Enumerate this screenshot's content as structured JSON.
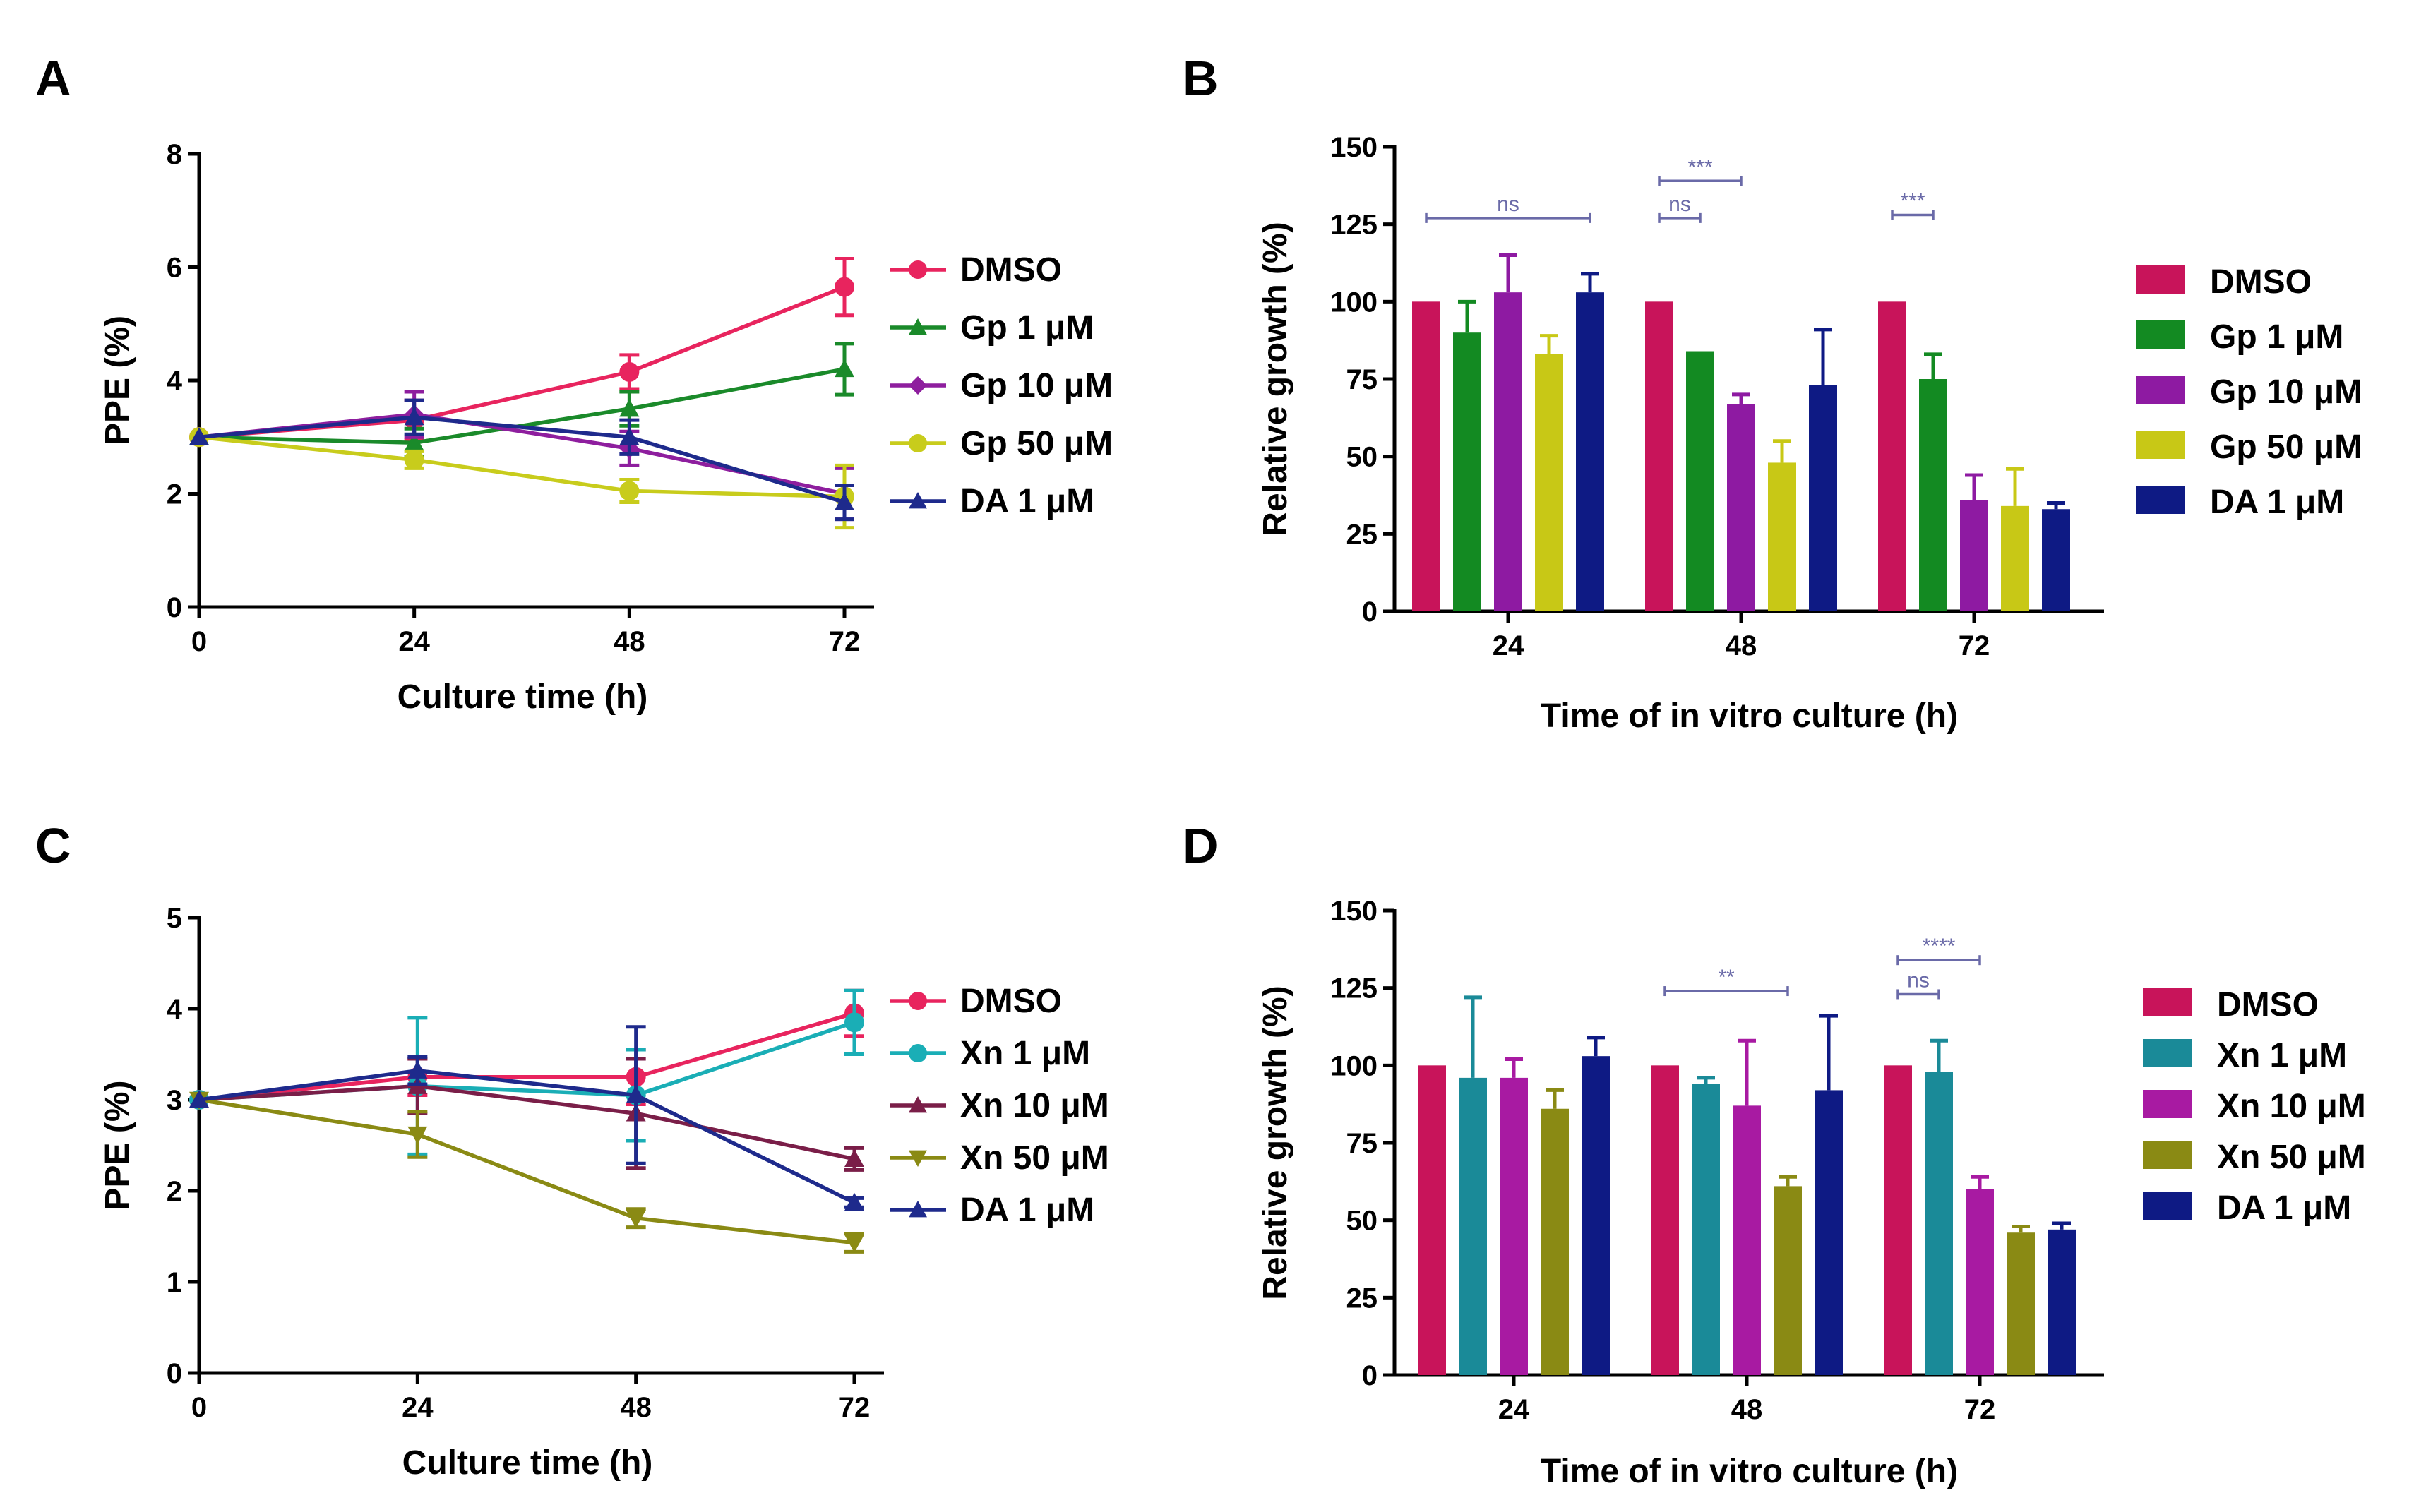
{
  "chart_data": [
    {
      "panel": "A",
      "type": "line",
      "x": [
        0,
        24,
        48,
        72
      ],
      "xlabel": "Culture time (h)",
      "ylabel": "PPE (%)",
      "ylim": [
        0,
        8
      ],
      "yticks": [
        0,
        2,
        4,
        6,
        8
      ],
      "xticks": [
        0,
        24,
        48,
        72
      ],
      "series": [
        {
          "name": "DMSO",
          "color": "#e8245e",
          "marker": "circle",
          "values": [
            3.0,
            3.3,
            4.15,
            5.65
          ],
          "errors": [
            0,
            0.35,
            0.3,
            0.5
          ]
        },
        {
          "name": "Gp 1 μM",
          "color": "#1a8a2a",
          "marker": "triangle-up",
          "values": [
            3.0,
            2.9,
            3.5,
            4.2
          ],
          "errors": [
            0,
            0.25,
            0.3,
            0.45
          ]
        },
        {
          "name": "Gp 10 μM",
          "color": "#8e1e9e",
          "marker": "diamond",
          "values": [
            3.0,
            3.4,
            2.8,
            2.0
          ],
          "errors": [
            0,
            0.4,
            0.3,
            0.45
          ]
        },
        {
          "name": "Gp 50 μM",
          "color": "#c8cc1c",
          "marker": "circle",
          "values": [
            3.0,
            2.6,
            2.05,
            1.95
          ],
          "errors": [
            0,
            0.15,
            0.2,
            0.55
          ]
        },
        {
          "name": "DA 1 μM",
          "color": "#1e2a8c",
          "marker": "triangle-up",
          "values": [
            3.0,
            3.35,
            3.0,
            1.85
          ],
          "errors": [
            0,
            0.3,
            0.3,
            0.3
          ]
        }
      ]
    },
    {
      "panel": "B",
      "type": "bar",
      "categories": [
        "24",
        "48",
        "72"
      ],
      "xlabel": "Time of in vitro culture (h)",
      "ylabel": "Relative growth (%)",
      "ylim": [
        0,
        150
      ],
      "yticks": [
        0,
        25,
        50,
        75,
        100,
        125,
        150
      ],
      "series": [
        {
          "name": "DMSO",
          "color": "#c8145a",
          "values": [
            100,
            100,
            100
          ],
          "errors": [
            0,
            0,
            0
          ]
        },
        {
          "name": "Gp 1 μM",
          "color": "#138a22",
          "values": [
            90,
            84,
            75
          ],
          "errors": [
            10,
            0,
            8
          ]
        },
        {
          "name": "Gp 10 μM",
          "color": "#8e1aa2",
          "values": [
            103,
            67,
            36
          ],
          "errors": [
            12,
            3,
            8
          ]
        },
        {
          "name": "Gp 50 μM",
          "color": "#c8c816",
          "values": [
            83,
            48,
            34
          ],
          "errors": [
            6,
            7,
            12
          ]
        },
        {
          "name": "DA 1 μM",
          "color": "#0e1a84",
          "values": [
            103,
            73,
            33
          ],
          "errors": [
            6,
            18,
            2
          ]
        }
      ],
      "annotations": [
        {
          "text": "ns",
          "group": "24",
          "from_series": 0,
          "to_series": 4,
          "y": 127
        },
        {
          "text": "***",
          "group": "48",
          "from_series": 0,
          "to_series": 2,
          "y": 139
        },
        {
          "text": "ns",
          "group": "48",
          "from_series": 0,
          "to_series": 1,
          "y": 127
        },
        {
          "text": "***",
          "group": "72",
          "from_series": 0,
          "to_series": 1,
          "y": 128
        }
      ]
    },
    {
      "panel": "C",
      "type": "line",
      "x": [
        0,
        24,
        48,
        72
      ],
      "xlabel": "Culture time (h)",
      "ylabel": "PPE (%)",
      "ylim": [
        0,
        5
      ],
      "yticks": [
        0,
        1,
        2,
        3,
        4,
        5
      ],
      "xticks": [
        0,
        24,
        48,
        72
      ],
      "series": [
        {
          "name": "DMSO",
          "color": "#e8245e",
          "marker": "circle",
          "values": [
            3.0,
            3.25,
            3.25,
            3.95
          ],
          "errors": [
            0,
            0.2,
            0.3,
            0.25
          ]
        },
        {
          "name": "Xn 1 μM",
          "color": "#1aaeb6",
          "marker": "circle",
          "values": [
            3.0,
            3.15,
            3.05,
            3.85
          ],
          "errors": [
            0,
            0.75,
            0.5,
            0.35
          ]
        },
        {
          "name": "Xn 10 μM",
          "color": "#7a1e48",
          "marker": "triangle-up",
          "values": [
            3.0,
            3.15,
            2.85,
            2.35
          ],
          "errors": [
            0,
            0.3,
            0.6,
            0.12
          ]
        },
        {
          "name": "Xn 50 μM",
          "color": "#8a8a14",
          "marker": "triangle-down",
          "values": [
            3.0,
            2.62,
            1.7,
            1.43
          ],
          "errors": [
            0,
            0.25,
            0.1,
            0.1
          ]
        },
        {
          "name": "DA 1 μM",
          "color": "#1e2a8c",
          "marker": "triangle-up",
          "values": [
            3.0,
            3.32,
            3.05,
            1.87
          ],
          "errors": [
            0,
            0.15,
            0.75,
            0.05
          ]
        }
      ]
    },
    {
      "panel": "D",
      "type": "bar",
      "categories": [
        "24",
        "48",
        "72"
      ],
      "xlabel": "Time of in vitro culture (h)",
      "ylabel": "Relative growth (%)",
      "ylim": [
        0,
        150
      ],
      "yticks": [
        0,
        25,
        50,
        75,
        100,
        125,
        150
      ],
      "series": [
        {
          "name": "DMSO",
          "color": "#c8145a",
          "values": [
            100,
            100,
            100
          ],
          "errors": [
            0,
            0,
            0
          ]
        },
        {
          "name": "Xn 1 μM",
          "color": "#1a8a98",
          "values": [
            96,
            94,
            98
          ],
          "errors": [
            26,
            2,
            10
          ]
        },
        {
          "name": "Xn 10 μM",
          "color": "#a81aa2",
          "values": [
            96,
            87,
            60
          ],
          "errors": [
            6,
            21,
            4
          ]
        },
        {
          "name": "Xn 50 μM",
          "color": "#8a8a14",
          "values": [
            86,
            61,
            46
          ],
          "errors": [
            6,
            3,
            2
          ]
        },
        {
          "name": "DA 1 μM",
          "color": "#0e1a84",
          "values": [
            103,
            92,
            47
          ],
          "errors": [
            6,
            24,
            2
          ]
        }
      ],
      "annotations": [
        {
          "text": "**",
          "group": "48",
          "from_series": 0,
          "to_series": 3,
          "y": 124
        },
        {
          "text": "****",
          "group": "72",
          "from_series": 0,
          "to_series": 2,
          "y": 134
        },
        {
          "text": "ns",
          "group": "72",
          "from_series": 0,
          "to_series": 1,
          "y": 123
        }
      ]
    }
  ]
}
